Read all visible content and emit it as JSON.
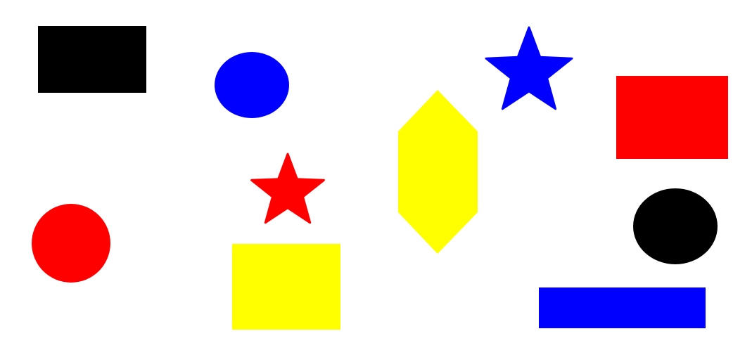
{
  "shapes": [
    {
      "id": "black-rectangle",
      "type": "rectangle",
      "color": "#000000"
    },
    {
      "id": "blue-ellipse",
      "type": "ellipse",
      "color": "#0000ff"
    },
    {
      "id": "yellow-hexagon",
      "type": "hexagon",
      "color": "#ffff00"
    },
    {
      "id": "blue-star",
      "type": "star",
      "color": "#0000ff"
    },
    {
      "id": "red-rectangle",
      "type": "rectangle",
      "color": "#ff0000"
    },
    {
      "id": "red-star",
      "type": "star",
      "color": "#ff0000"
    },
    {
      "id": "red-circle",
      "type": "circle",
      "color": "#ff0000"
    },
    {
      "id": "yellow-rectangle",
      "type": "rectangle",
      "color": "#ffff00"
    },
    {
      "id": "black-ellipse",
      "type": "ellipse",
      "color": "#000000"
    },
    {
      "id": "blue-rectangle",
      "type": "rectangle",
      "color": "#0000ff"
    }
  ]
}
